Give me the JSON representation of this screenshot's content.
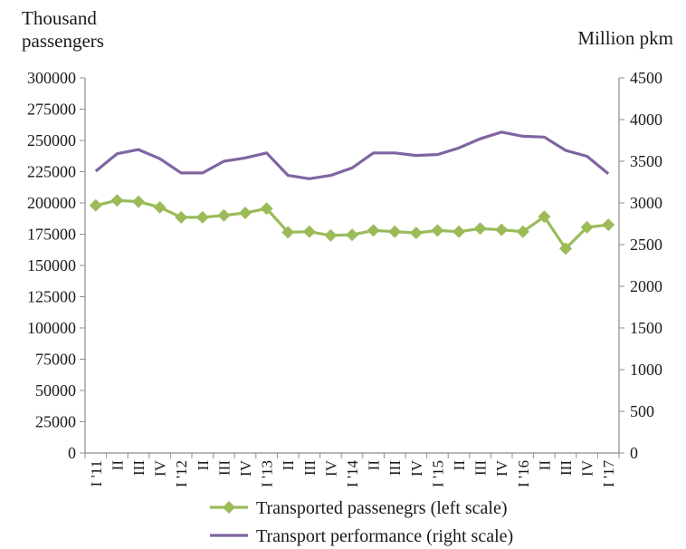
{
  "chart_data": {
    "type": "line",
    "left_axis_label_line1": "Thousand",
    "left_axis_label_line2": "passengers",
    "right_axis_label": "Million  pkm",
    "categories": [
      "I '11",
      "II",
      "III",
      "IV",
      "I '12",
      "II",
      "III",
      "IV",
      "I '13",
      "II",
      "III",
      "IV",
      "I '14",
      "II",
      "III",
      "IV",
      "I '15",
      "II",
      "III",
      "IV",
      "I '16",
      "II",
      "III",
      "IV",
      "I '17"
    ],
    "left_ylim": [
      0,
      300000
    ],
    "left_yticks": [
      0,
      25000,
      50000,
      75000,
      100000,
      125000,
      150000,
      175000,
      200000,
      225000,
      250000,
      275000,
      300000
    ],
    "right_ylim": [
      0,
      4500
    ],
    "right_yticks": [
      0,
      500,
      1000,
      1500,
      2000,
      2500,
      3000,
      3500,
      4000,
      4500
    ],
    "grid": false,
    "legend_position": "bottom",
    "series": [
      {
        "name": "Transported  passenegrs (left scale)",
        "axis": "left",
        "color": "#9bbb59",
        "marker": "diamond",
        "values": [
          198000,
          202000,
          201000,
          196500,
          188500,
          188500,
          190000,
          192000,
          195500,
          176500,
          177000,
          174000,
          174500,
          178000,
          177000,
          176000,
          178000,
          177000,
          179500,
          178500,
          177000,
          189000,
          163500,
          180500,
          182500
        ]
      },
      {
        "name": "Transport  performance (right scale)",
        "axis": "right",
        "color": "#8064a2",
        "marker": "none",
        "values": [
          3380,
          3590,
          3640,
          3530,
          3360,
          3360,
          3500,
          3540,
          3600,
          3330,
          3290,
          3330,
          3420,
          3600,
          3600,
          3570,
          3580,
          3660,
          3770,
          3850,
          3800,
          3790,
          3630,
          3560,
          3350
        ]
      }
    ]
  }
}
